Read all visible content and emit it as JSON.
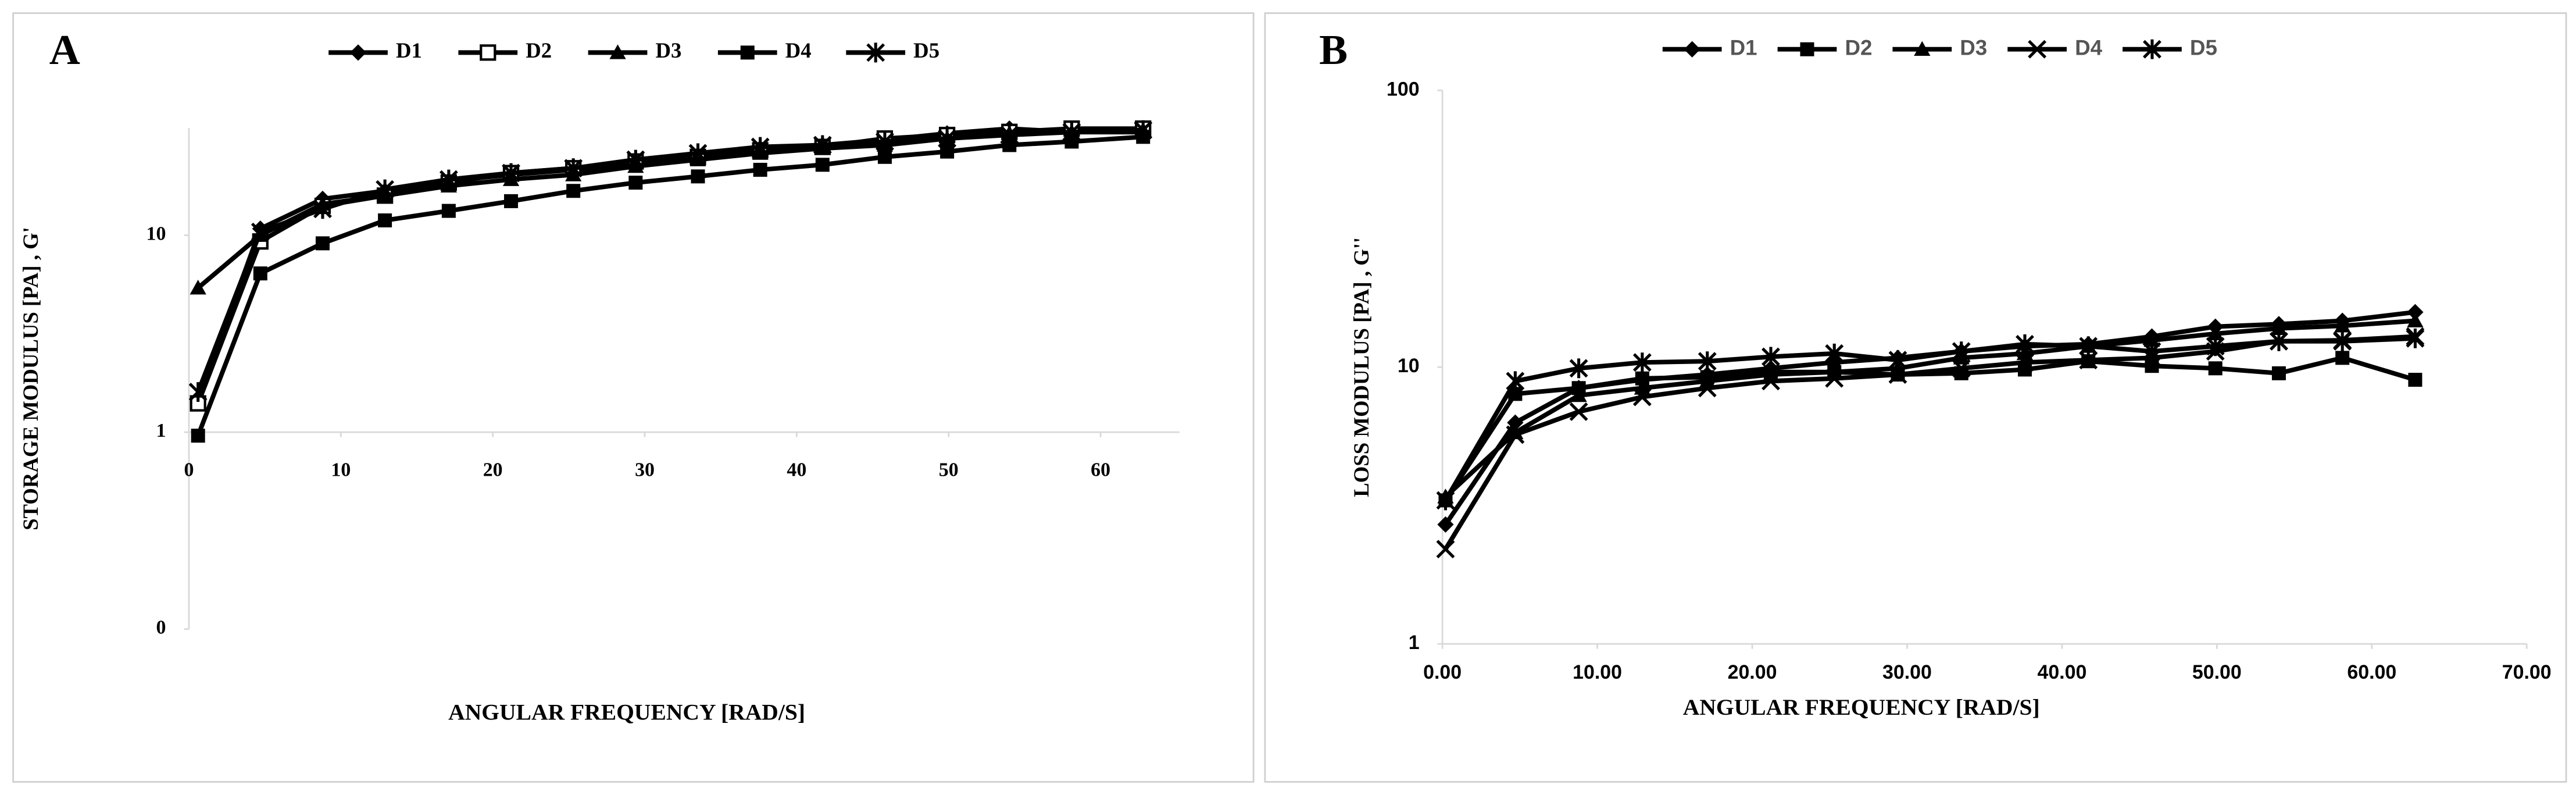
{
  "chart_data": [
    {
      "type": "line",
      "panel_label": "A",
      "ylabel": "STORAGE MODULUS [PA] , G'",
      "xlabel": "ANGULAR FREQUENCY [RAD/S]",
      "log_y": true,
      "xlim": [
        0,
        65.2
      ],
      "ylim": [
        0.1,
        35
      ],
      "xaxis_crosses": 1,
      "xticks": [
        0,
        10,
        20,
        30,
        40,
        50,
        60
      ],
      "yticks": [
        {
          "value": 0.1,
          "label": "0"
        },
        1,
        10
      ],
      "x": [
        0.6,
        4.7,
        8.8,
        12.9,
        17.1,
        21.2,
        25.3,
        29.4,
        33.5,
        37.6,
        41.7,
        45.8,
        49.9,
        54.0,
        58.1,
        62.8
      ],
      "series": [
        {
          "name": "D1",
          "color": "#000000",
          "marker": "diamond",
          "values": [
            1.44,
            10.8,
            15.3,
            16.8,
            18.9,
            20.3,
            21.5,
            23.2,
            25,
            27.6,
            28.7,
            30.5,
            32.9,
            34.8,
            33.4,
            33.4
          ]
        },
        {
          "name": "D2",
          "color": "#000000",
          "marker": "square-open",
          "values": [
            1.4,
            9.3,
            14.1,
            15.9,
            18.5,
            20.7,
            21.9,
            23.7,
            25,
            27,
            28.1,
            31,
            32.3,
            33.5,
            34.8,
            34.8
          ]
        },
        {
          "name": "D3",
          "color": "#000000",
          "marker": "triangle",
          "values": [
            5.4,
            10,
            14.4,
            15.9,
            17.8,
            19.2,
            20.3,
            22.4,
            24.2,
            26.1,
            27.6,
            28.7,
            31,
            32.9,
            33.4,
            34.2
          ]
        },
        {
          "name": "D4",
          "color": "#000000",
          "marker": "square",
          "values": [
            0.96,
            6.4,
            9.1,
            11.9,
            13.3,
            14.9,
            16.8,
            18.5,
            19.9,
            21.5,
            22.8,
            25,
            26.6,
            28.7,
            29.9,
            31.6
          ]
        },
        {
          "name": "D5",
          "color": "#000000",
          "marker": "star",
          "values": [
            1.6,
            10.4,
            13.6,
            17.1,
            19.2,
            20.7,
            21.9,
            24.2,
            26.1,
            28.1,
            28.7,
            29.9,
            31,
            32.3,
            33.4,
            34.2
          ]
        }
      ]
    },
    {
      "type": "line",
      "panel_label": "B",
      "ylabel": "LOSS MODULUS [PA] , G''",
      "xlabel": "ANGULAR FREQUENCY [RAD/S]",
      "log_y": true,
      "xlim": [
        0,
        70
      ],
      "ylim": [
        1,
        100
      ],
      "xaxis_crosses": 1,
      "xticks": [
        {
          "value": 0,
          "label": "0.00"
        },
        {
          "value": 10,
          "label": "10.00"
        },
        {
          "value": 20,
          "label": "20.00"
        },
        {
          "value": 30,
          "label": "30.00"
        },
        {
          "value": 40,
          "label": "40.00"
        },
        {
          "value": 50,
          "label": "50.00"
        },
        {
          "value": 60,
          "label": "60.00"
        },
        {
          "value": 70,
          "label": "70.00"
        }
      ],
      "yticks": [
        1,
        10,
        100
      ],
      "x": [
        0.2,
        4.7,
        8.8,
        12.9,
        17.1,
        21.2,
        25.3,
        29.4,
        33.5,
        37.6,
        41.7,
        45.8,
        49.9,
        54.0,
        58.1,
        62.8
      ],
      "series": [
        {
          "name": "D1",
          "color": "#000000",
          "marker": "diamond",
          "values": [
            2.7,
            6.3,
            8.4,
            9,
            9.4,
            9.9,
            10.4,
            10.8,
            11.4,
            11.9,
            12.1,
            12.9,
            14,
            14.3,
            14.7,
            15.8
          ]
        },
        {
          "name": "D2",
          "color": "#000000",
          "marker": "square",
          "values": [
            3.3,
            8,
            8.4,
            9.1,
            9.2,
            9.6,
            9.6,
            9.4,
            9.5,
            9.8,
            10.5,
            10.1,
            9.9,
            9.5,
            10.8,
            9
          ]
        },
        {
          "name": "D3",
          "color": "#000000",
          "marker": "triangle",
          "values": [
            3.4,
            5.8,
            7.9,
            8.4,
            8.9,
            9.4,
            9.6,
            9.9,
            10.8,
            11.2,
            11.9,
            12.5,
            13.2,
            13.8,
            14.1,
            14.7
          ]
        },
        {
          "name": "D4",
          "color": "#000000",
          "marker": "x",
          "values": [
            2.2,
            5.7,
            6.9,
            7.8,
            8.4,
            8.9,
            9.1,
            9.4,
            9.9,
            10.4,
            10.6,
            10.8,
            11.4,
            12.4,
            12.5,
            12.9
          ]
        },
        {
          "name": "D5",
          "color": "#000000",
          "marker": "star",
          "values": [
            3.3,
            8.9,
            9.9,
            10.4,
            10.5,
            10.9,
            11.2,
            10.6,
            11.4,
            12.1,
            11.9,
            11.4,
            11.9,
            12.4,
            12.4,
            12.7
          ]
        }
      ]
    }
  ]
}
